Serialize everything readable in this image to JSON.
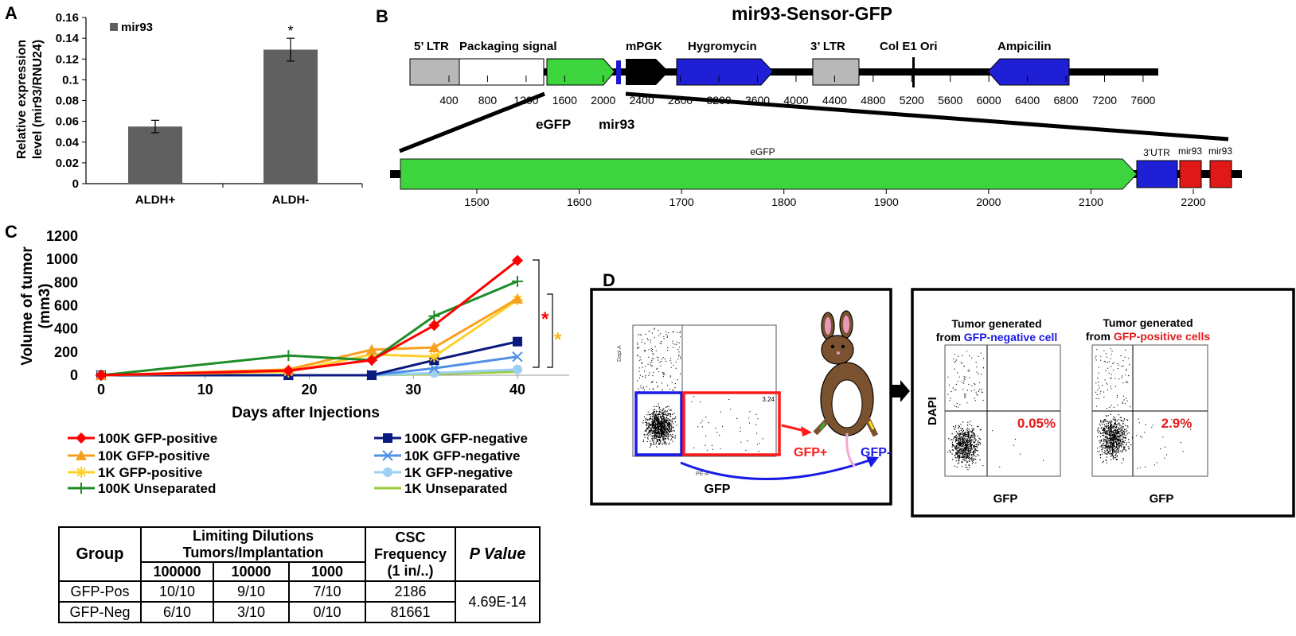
{
  "panels": {
    "a": {
      "label": "A",
      "chart_data": {
        "type": "bar",
        "categories": [
          "ALDH+",
          "ALDH-"
        ],
        "series": [
          {
            "name": "mir93",
            "values": [
              0.055,
              0.129
            ],
            "errors": [
              0.006,
              0.011
            ],
            "color": "#606060"
          }
        ],
        "ylabel": "Relative expression level (mir93/RNU24)",
        "ylabel_lines": [
          "Relative expression",
          "level (mir93/RNU24)"
        ],
        "ylim": [
          0,
          0.16
        ],
        "yticks": [
          "0",
          "0.02",
          "0.04",
          "0.06",
          "0.08",
          "0.1",
          "0.12",
          "0.14",
          "0.16"
        ],
        "annotation": "*",
        "legend": "top-left"
      }
    },
    "b": {
      "label": "B",
      "title": "mir93-Sensor-GFP",
      "top_labels": [
        "5’ LTR",
        "Packaging signal",
        "mPGK",
        "Hygromycin",
        "3’ LTR",
        "Col E1 Ori",
        "Ampicilin"
      ],
      "bottom_labels": [
        "eGFP",
        "mir93"
      ],
      "top_scale": [
        "400",
        "800",
        "1200",
        "1600",
        "2000",
        "2400",
        "2800",
        "3200",
        "3600",
        "4000",
        "4400",
        "4800",
        "5200",
        "5600",
        "6000",
        "6400",
        "6800",
        "7200",
        "7600"
      ],
      "zoom_labels": [
        "eGFP",
        "3'UTR",
        "mir93",
        "mir93"
      ],
      "zoom_scale": [
        "1500",
        "1600",
        "1700",
        "1800",
        "1900",
        "2000",
        "2100",
        "2200"
      ]
    },
    "c": {
      "label": "C",
      "chart_data": {
        "type": "line",
        "x": [
          0,
          18,
          26,
          32,
          40
        ],
        "xticks": [
          "0",
          "10",
          "20",
          "30",
          "40"
        ],
        "yticks": [
          "0",
          "200",
          "400",
          "600",
          "800",
          "1000",
          "1200"
        ],
        "xlim": [
          0,
          45
        ],
        "ylim": [
          0,
          1200
        ],
        "xlabel": "Days after Injections",
        "ylabel": "Volume of tumor (mm3)",
        "ylabel_lines": [
          "Volume of tumor",
          "(mm3)"
        ],
        "series": [
          {
            "name": "100K GFP-positive",
            "color": "#ff0000",
            "marker": "diamond",
            "values": [
              0,
              40,
              130,
              430,
              990
            ]
          },
          {
            "name": "10K GFP-positive",
            "color": "#f7a020",
            "marker": "triangle",
            "values": [
              0,
              50,
              220,
              240,
              660
            ]
          },
          {
            "name": "1K GFP-positive",
            "color": "#ffd02a",
            "marker": "asterisk",
            "values": [
              0,
              30,
              180,
              160,
              650
            ]
          },
          {
            "name": "100K Unseparated",
            "color": "#1e8c28",
            "marker": "plus",
            "values": [
              0,
              170,
              130,
              510,
              810
            ]
          },
          {
            "name": "100K GFP-negative",
            "color": "#0a1a7f",
            "marker": "square",
            "values": [
              0,
              0,
              0,
              130,
              290
            ]
          },
          {
            "name": "10K GFP-negative",
            "color": "#4f8fe6",
            "marker": "x",
            "values": [
              0,
              0,
              0,
              60,
              160
            ]
          },
          {
            "name": "1K GFP-negative",
            "color": "#9cd0f2",
            "marker": "circle",
            "values": [
              0,
              0,
              0,
              20,
              50
            ]
          },
          {
            "name": "1K Unseparated",
            "color": "#9ccc3c",
            "marker": "none",
            "values": [
              0,
              0,
              0,
              10,
              30
            ]
          }
        ],
        "annotations": [
          {
            "text": "*",
            "color": "#ff0000"
          },
          {
            "text": "*",
            "color": "#f7b41e"
          }
        ],
        "legend": "bottom"
      },
      "table": {
        "header_group": "Group",
        "header_dilutions": [
          "Limiting Dilutions",
          "Tumors/Implantation"
        ],
        "header_doses": [
          "100000",
          "10000",
          "1000"
        ],
        "header_csc": [
          "CSC",
          "Frequency",
          "(1 in/..)"
        ],
        "header_p": "P Value",
        "rows": [
          {
            "group": "GFP-Pos",
            "d1": "10/10",
            "d2": "9/10",
            "d3": "7/10",
            "freq": "2186"
          },
          {
            "group": "GFP-Neg",
            "d1": "6/10",
            "d2": "3/10",
            "d3": "0/10",
            "freq": "81661"
          }
        ],
        "p_value": "4.69E-14"
      }
    },
    "d": {
      "label": "D",
      "left_xlabel": "GFP",
      "left_axis_y": "Dapi A",
      "left_axis_x": "PE-A",
      "gate_value": "3.24",
      "gfp_plus": "GFP+",
      "gfp_minus": "GFP-",
      "right_ylabel": "DAPI",
      "plot1": {
        "title1": "Tumor generated",
        "title2a": "from ",
        "title2b": "GFP-negative cell",
        "value": "0.05%",
        "xlabel": "GFP"
      },
      "plot2": {
        "title1": "Tumor generated",
        "title2a": "from ",
        "title2b": "GFP-positive cells",
        "value": "2.9%",
        "xlabel": "GFP"
      }
    }
  }
}
